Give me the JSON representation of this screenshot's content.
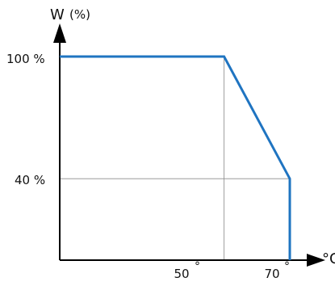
{
  "chart_data": {
    "type": "line",
    "title": "",
    "ylabel": "W",
    "yunit": "(%)",
    "xlabel": "°C",
    "x": [
      0,
      50,
      70,
      70
    ],
    "y": [
      100,
      100,
      40,
      0
    ],
    "xlim": [
      0,
      73
    ],
    "ylim": [
      0,
      115
    ],
    "xticks": [
      {
        "value": 50,
        "label": "50",
        "mark": "°"
      },
      {
        "value": 70,
        "label": "70",
        "mark": "°"
      }
    ],
    "yticks": [
      {
        "value": 100,
        "label": "100 %"
      },
      {
        "value": 40,
        "label": "40 %"
      }
    ],
    "grid": "at labeled ticks only",
    "line_color": "#1f74c1"
  }
}
